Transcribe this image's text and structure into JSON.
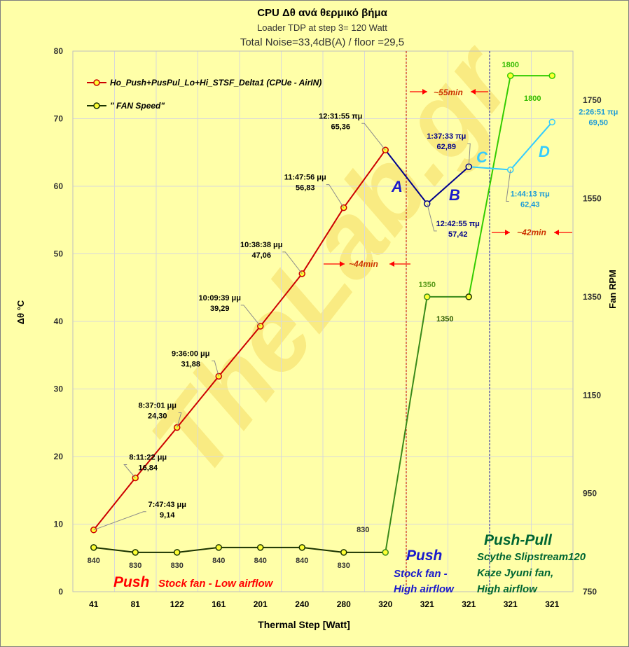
{
  "chart_data": {
    "type": "line",
    "title": "CPU  Δθ   ανά θερμικό βήμα",
    "subtitle": "Loader TDP at step 3= 120 Watt",
    "subtitle2": "Total Noise=33,4dB(A) / floor =29,5",
    "xlabel": "Thermal Step [Watt]",
    "ylabel": "Δθ °C",
    "y2label": "Fan RPM",
    "categories": [
      "41",
      "81",
      "122",
      "161",
      "201",
      "240",
      "280",
      "320",
      "321",
      "321",
      "321",
      "321"
    ],
    "ylim": [
      0,
      80
    ],
    "yticks": [
      "0",
      "10",
      "20",
      "30",
      "40",
      "50",
      "60",
      "70",
      "80"
    ],
    "y2lim": [
      750,
      1850
    ],
    "y2ticks": [
      "750",
      "950",
      "1150",
      "1350",
      "1550",
      "1750"
    ],
    "grid": true,
    "legend_position": "top-left",
    "series": [
      {
        "name": "Ho_Push+PusPul_Lo+Hi_STSF_Delta1 (CPUe - AirIN)",
        "axis": "left",
        "values": [
          9.14,
          16.84,
          24.3,
          31.88,
          39.29,
          47.06,
          56.83,
          65.36,
          57.42,
          62.89,
          62.43,
          69.5
        ],
        "times": [
          "7:47:43 μμ",
          "8:11:22 μμ",
          "8:37:01 μμ",
          "9:36:00 μμ",
          "10:09:39 μμ",
          "10:38:38 μμ",
          "11:47:56 μμ",
          "12:31:55 πμ",
          "12:42:55 πμ",
          "1:37:33 πμ",
          "1:44:13 πμ",
          "2:26:51 πμ"
        ],
        "labels": [
          "9,14",
          "16,84",
          "24,30",
          "31,88",
          "39,29",
          "47,06",
          "56,83",
          "65,36",
          "57,42",
          "62,89",
          "62,43",
          "69,50"
        ]
      },
      {
        "name": "\" FAN Speed\"",
        "axis": "right",
        "values": [
          840,
          830,
          830,
          840,
          840,
          840,
          830,
          830,
          1350,
          1350,
          1800,
          1800
        ],
        "labels": [
          "840",
          "830",
          "830",
          "840",
          "840",
          "840",
          "830",
          "830",
          "1350",
          "1350",
          "1800",
          "1800"
        ]
      }
    ],
    "annotations": {
      "segment_labels": [
        "A",
        "B",
        "C",
        "D"
      ],
      "durations": [
        "~44min",
        "~55min",
        "~42min"
      ],
      "push_title": "Push",
      "push_desc": "Stock fan - Low airflow",
      "push2_title": "Push",
      "push2_desc": [
        "Stock fan -",
        "High airflow"
      ],
      "pushpull_title": "Push-Pull",
      "pushpull_desc": [
        "Scythe Slipstream120",
        "Kaze Jyuni fan,",
        "High airflow"
      ],
      "watermark": "TheLab.gr"
    },
    "colors": {
      "background": "#ffffa8",
      "grid": "#d9d9d9",
      "temp_push": "#cc0000",
      "temp_segment_ab": "#00008b",
      "temp_segment_cd": "#33ccff",
      "fan_low": "#1a3300",
      "fan_push": "#3a8a1a",
      "fan_pushpull": "#33cc00",
      "marker_fill": "#ffff33",
      "annotation_red": "#ff0000",
      "annotation_dark_green": "#006633"
    }
  }
}
